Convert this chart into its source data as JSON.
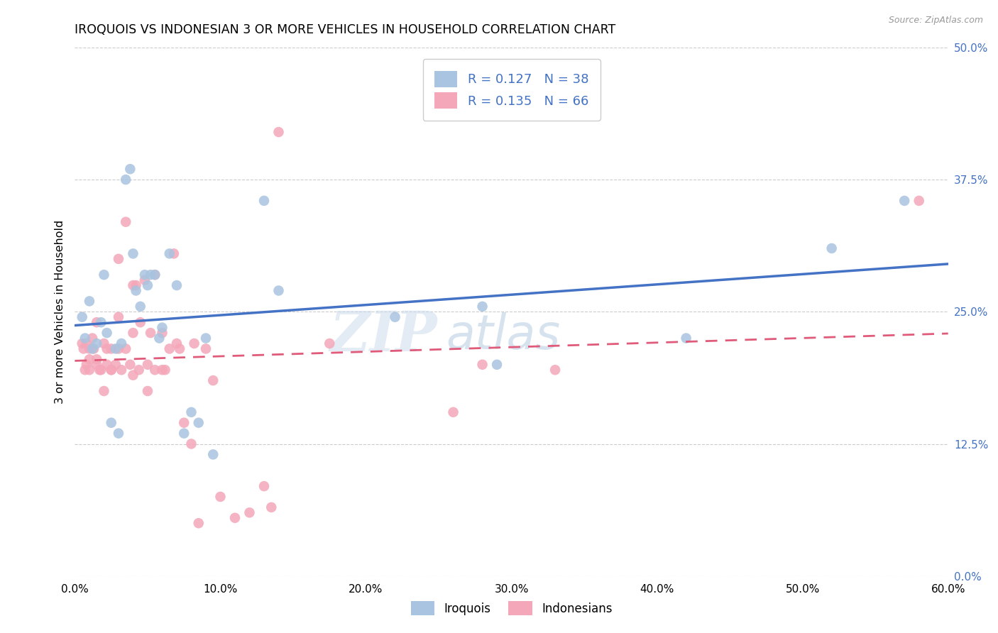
{
  "title": "IROQUOIS VS INDONESIAN 3 OR MORE VEHICLES IN HOUSEHOLD CORRELATION CHART",
  "source": "Source: ZipAtlas.com",
  "xlabel_ticks": [
    "0.0%",
    "10.0%",
    "20.0%",
    "30.0%",
    "40.0%",
    "50.0%",
    "60.0%"
  ],
  "xlabel_vals": [
    0.0,
    0.1,
    0.2,
    0.3,
    0.4,
    0.5,
    0.6
  ],
  "ylabel_right_ticks": [
    "50.0%",
    "37.5%",
    "25.0%",
    "12.5%",
    "0.0%"
  ],
  "ylabel_right_vals": [
    0.5,
    0.375,
    0.25,
    0.125,
    0.0
  ],
  "ylabel_label": "3 or more Vehicles in Household",
  "xlim": [
    0.0,
    0.6
  ],
  "ylim": [
    0.0,
    0.5
  ],
  "iroquois_R": 0.127,
  "iroquois_N": 38,
  "indonesians_R": 0.135,
  "indonesians_N": 66,
  "iroquois_color": "#a8c4e0",
  "indonesians_color": "#f4a7b9",
  "iroquois_line_color": "#4472c4",
  "indonesians_line_color": "#e05a7a",
  "legend_iroquois": "Iroquois",
  "legend_indonesians": "Indonesians",
  "watermark_zip": "ZIP",
  "watermark_atlas": "atlas",
  "iroquois_x": [
    0.005,
    0.007,
    0.01,
    0.012,
    0.015,
    0.018,
    0.02,
    0.022,
    0.025,
    0.028,
    0.03,
    0.032,
    0.035,
    0.038,
    0.04,
    0.042,
    0.045,
    0.048,
    0.05,
    0.052,
    0.055,
    0.058,
    0.06,
    0.065,
    0.07,
    0.075,
    0.08,
    0.085,
    0.09,
    0.095,
    0.13,
    0.14,
    0.22,
    0.28,
    0.29,
    0.42,
    0.52,
    0.57
  ],
  "iroquois_y": [
    0.245,
    0.225,
    0.26,
    0.215,
    0.22,
    0.24,
    0.285,
    0.23,
    0.145,
    0.215,
    0.135,
    0.22,
    0.375,
    0.385,
    0.305,
    0.27,
    0.255,
    0.285,
    0.275,
    0.285,
    0.285,
    0.225,
    0.235,
    0.305,
    0.275,
    0.135,
    0.155,
    0.145,
    0.225,
    0.115,
    0.355,
    0.27,
    0.245,
    0.255,
    0.2,
    0.225,
    0.31,
    0.355
  ],
  "indonesians_x": [
    0.005,
    0.006,
    0.007,
    0.008,
    0.008,
    0.01,
    0.01,
    0.01,
    0.012,
    0.013,
    0.015,
    0.015,
    0.015,
    0.017,
    0.018,
    0.02,
    0.02,
    0.022,
    0.022,
    0.025,
    0.025,
    0.025,
    0.028,
    0.03,
    0.03,
    0.03,
    0.032,
    0.035,
    0.035,
    0.038,
    0.04,
    0.04,
    0.04,
    0.042,
    0.044,
    0.045,
    0.048,
    0.05,
    0.05,
    0.052,
    0.055,
    0.055,
    0.06,
    0.06,
    0.062,
    0.065,
    0.068,
    0.07,
    0.072,
    0.075,
    0.08,
    0.082,
    0.085,
    0.09,
    0.095,
    0.1,
    0.11,
    0.12,
    0.13,
    0.135,
    0.14,
    0.175,
    0.26,
    0.28,
    0.33,
    0.58
  ],
  "indonesians_y": [
    0.22,
    0.215,
    0.195,
    0.22,
    0.2,
    0.215,
    0.205,
    0.195,
    0.225,
    0.215,
    0.205,
    0.2,
    0.24,
    0.195,
    0.195,
    0.22,
    0.175,
    0.215,
    0.2,
    0.195,
    0.215,
    0.195,
    0.2,
    0.215,
    0.245,
    0.3,
    0.195,
    0.215,
    0.335,
    0.2,
    0.275,
    0.23,
    0.19,
    0.275,
    0.195,
    0.24,
    0.28,
    0.2,
    0.175,
    0.23,
    0.195,
    0.285,
    0.195,
    0.23,
    0.195,
    0.215,
    0.305,
    0.22,
    0.215,
    0.145,
    0.125,
    0.22,
    0.05,
    0.215,
    0.185,
    0.075,
    0.055,
    0.06,
    0.085,
    0.065,
    0.42,
    0.22,
    0.155,
    0.2,
    0.195,
    0.355
  ]
}
